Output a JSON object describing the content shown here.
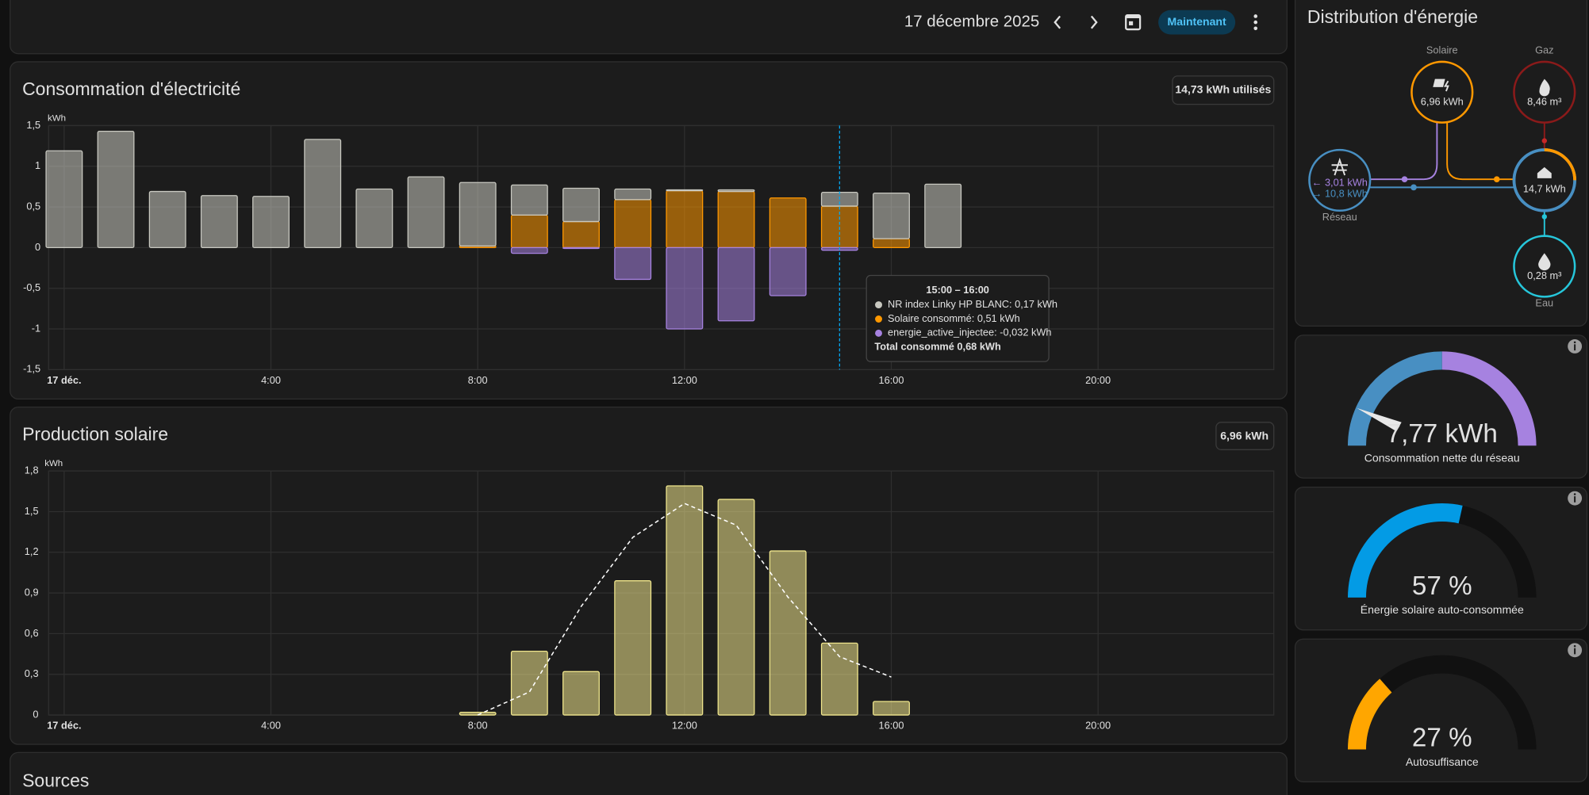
{
  "header": {
    "date": "17 décembre 2025",
    "button": "Maintenant"
  },
  "consumption": {
    "type": "bar",
    "title": "Consommation d'électricité",
    "badge": "14,73 kWh utilisés",
    "y_unit": "kWh",
    "stacked": true,
    "grid": true,
    "x": [
      0,
      1,
      2,
      3,
      4,
      5,
      6,
      7,
      8,
      9,
      10,
      11,
      12,
      13,
      14,
      15,
      16,
      17
    ],
    "series": [
      {
        "name": "Solaire consommé",
        "color": "#ff9800",
        "values": [
          0,
          0,
          0,
          0,
          0,
          0,
          0,
          0,
          0.02,
          0.4,
          0.32,
          0.59,
          0.7,
          0.69,
          0.61,
          0.51,
          0.11,
          0
        ]
      },
      {
        "name": "NR index Linky HP BLANC",
        "color": "#c8c8c0",
        "values": [
          1.19,
          1.43,
          0.69,
          0.64,
          0.63,
          1.33,
          0.72,
          0.87,
          0.78,
          0.37,
          0.41,
          0.13,
          0.01,
          0.02,
          0,
          0.17,
          0.56,
          0.78
        ]
      },
      {
        "name": "energie_active_injectee",
        "color": "#a682e0",
        "values": [
          0,
          0,
          0,
          0,
          0,
          0,
          0,
          0,
          0,
          -0.07,
          -0.01,
          -0.39,
          -1.0,
          -0.9,
          -0.59,
          -0.032,
          0,
          0
        ]
      }
    ],
    "xlim": [
      -0.3,
      23.4
    ],
    "xticks": [
      {
        "value": 0,
        "label": "17 déc."
      },
      {
        "value": 4,
        "label": "4:00"
      },
      {
        "value": 8,
        "label": "8:00"
      },
      {
        "value": 12,
        "label": "12:00"
      },
      {
        "value": 16,
        "label": "16:00"
      },
      {
        "value": 20,
        "label": "20:00"
      }
    ],
    "ylim": [
      -1.5,
      1.5
    ],
    "yticks": [
      {
        "value": 1.5,
        "label": "1,5"
      },
      1,
      {
        "value": 0.5,
        "label": "0,5"
      },
      0,
      {
        "value": -0.5,
        "label": "-0,5"
      },
      -1,
      {
        "value": -1.5,
        "label": "-1,5"
      }
    ],
    "cursor_x": 15,
    "tooltip": {
      "title": "15:00 – 16:00",
      "lines": [
        "NR index Linky HP BLANC: 0,17 kWh",
        "Solaire consommé: 0,51 kWh",
        "energie_active_injectee: -0,032 kWh"
      ],
      "total": "Total consommé 0,68 kWh"
    }
  },
  "solar": {
    "type": "bar",
    "title": "Production solaire",
    "badge": "6,96 kWh",
    "y_unit": "kWh",
    "grid": true,
    "x": [
      8,
      9,
      10,
      11,
      12,
      13,
      14,
      15,
      16
    ],
    "series": [
      {
        "type": "bar",
        "color": "#f0e68c",
        "values": [
          0.02,
          0.47,
          0.32,
          0.99,
          1.69,
          1.59,
          1.21,
          0.53,
          0.1
        ]
      },
      {
        "type": "line",
        "dashed": true,
        "color": "#ffffff",
        "values": [
          0,
          0.17,
          0.8,
          1.31,
          1.56,
          1.4,
          0.87,
          0.43,
          0.28
        ]
      }
    ],
    "xlim": [
      -0.3,
      23.4
    ],
    "xticks": [
      {
        "value": 0,
        "label": "17 déc."
      },
      {
        "value": 4,
        "label": "4:00"
      },
      {
        "value": 8,
        "label": "8:00"
      },
      {
        "value": 12,
        "label": "12:00"
      },
      {
        "value": 16,
        "label": "16:00"
      },
      {
        "value": 20,
        "label": "20:00"
      }
    ],
    "ylim": [
      0,
      1.8
    ],
    "yticks": [
      0,
      {
        "value": 0.3,
        "label": "0,3"
      },
      {
        "value": 0.6,
        "label": "0,6"
      },
      {
        "value": 0.9,
        "label": "0,9"
      },
      {
        "value": 1.2,
        "label": "1,2"
      },
      {
        "value": 1.5,
        "label": "1,5"
      },
      {
        "value": 1.8,
        "label": "1,8"
      }
    ]
  },
  "distribution": {
    "title": "Distribution d'énergie",
    "nodes": {
      "solar": {
        "label": "Solaire",
        "value": "6,96 kWh"
      },
      "gas": {
        "label": "Gaz",
        "value": "8,46 m³"
      },
      "grid": {
        "label": "Réseau",
        "in": "← 3,01 kWh",
        "out": "→ 10,8 kWh"
      },
      "home": {
        "value": "14,7 kWh"
      },
      "water": {
        "label": "Eau",
        "value": "0,28 m³"
      }
    }
  },
  "gauges": [
    {
      "value": 7.77,
      "value_label": "7,77 kWh",
      "label": "Consommation nette du réseau"
    },
    {
      "value": 57,
      "value_label": "57 %",
      "label": "Énergie solaire auto-consommée",
      "color": "#039be5"
    },
    {
      "value": 27,
      "value_label": "27 %",
      "label": "Autosuffisance",
      "color": "#ffa600"
    }
  ],
  "sources": {
    "title": "Sources"
  }
}
